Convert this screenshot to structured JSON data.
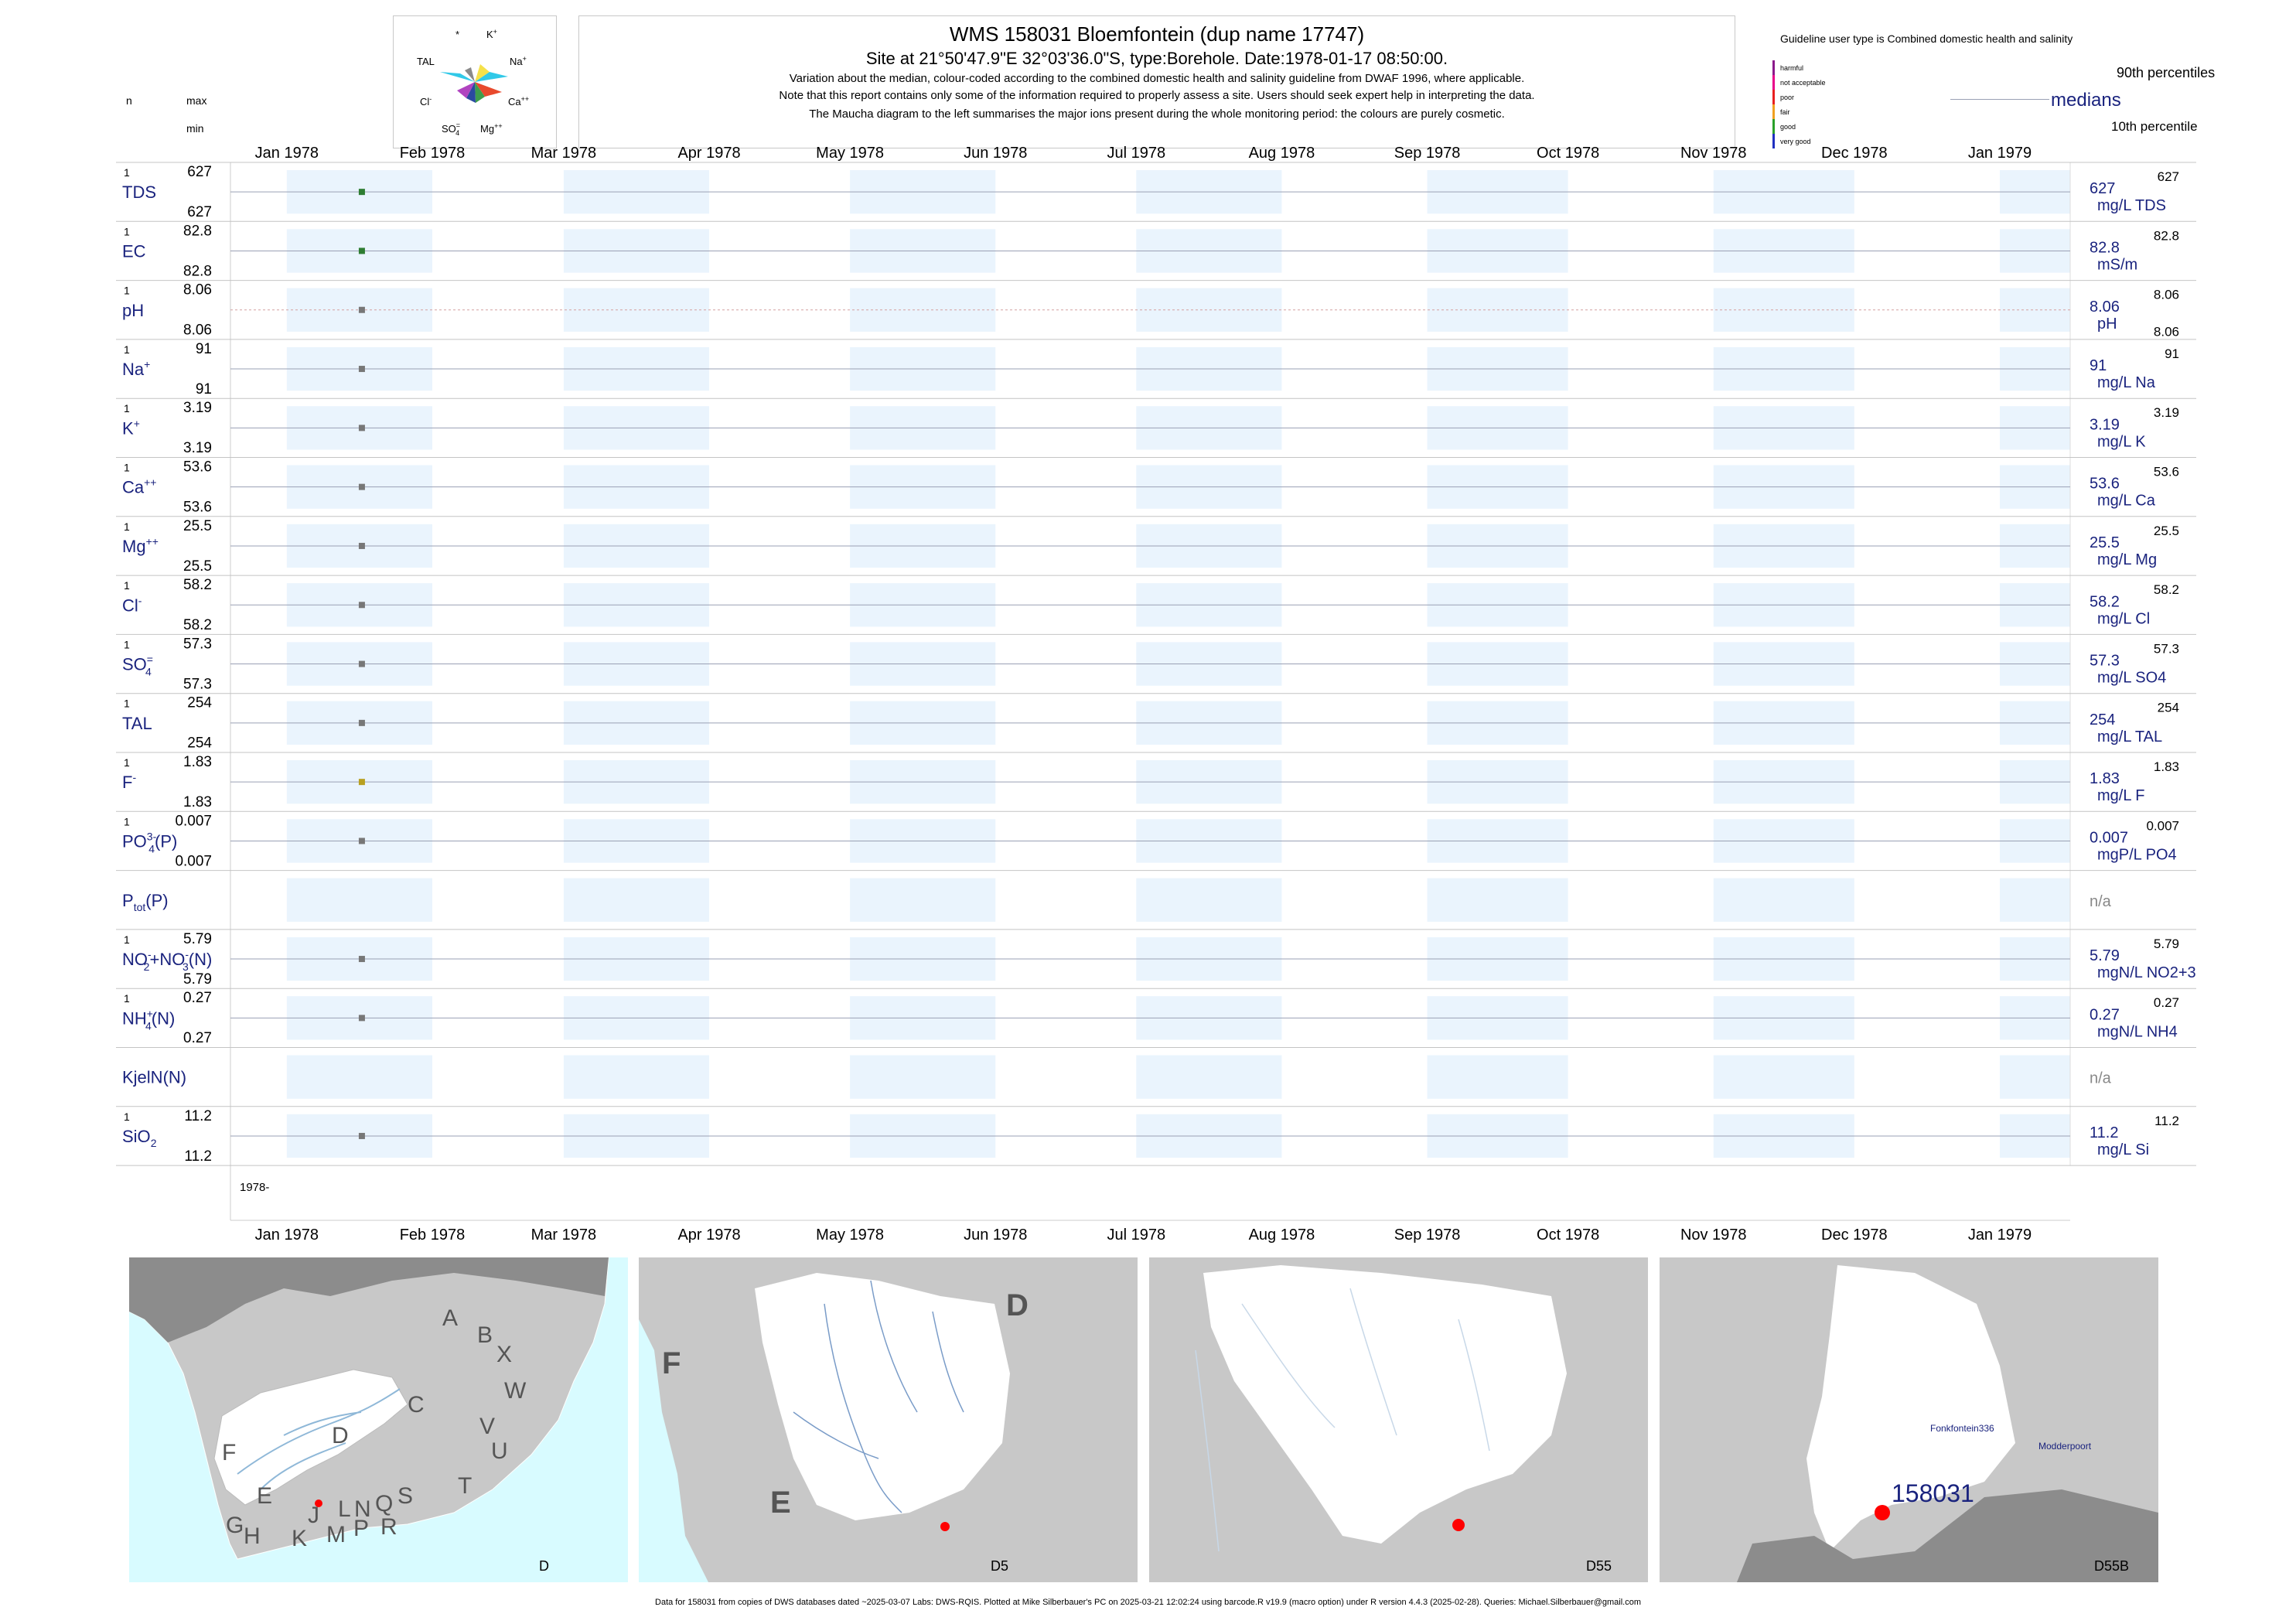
{
  "header": {
    "title": "WMS 158031  Bloemfontein (dup name 17747)",
    "subtitle": "Site at 21°50'47.9\"E 32°03'36.0\"S, type:Borehole. Date:1978-01-17 08:50:00.",
    "note1": "Variation about the median,  colour-coded according to the combined domestic health and salinity guideline from DWAF 1996, where applicable.",
    "note2": "Note that this report contains only some of the information required to properly assess a site. Users should seek expert help in interpreting the data.",
    "note3": "The Maucha diagram to the left summarises the major ions present during the whole monitoring period: the colours are purely cosmetic."
  },
  "col_labels": {
    "n": "n",
    "max": "max",
    "min": "min"
  },
  "maucha": {
    "labels": {
      "star": "*",
      "k": "K",
      "k_sup": "+",
      "na": "Na",
      "na_sup": "+",
      "tal": "TAL",
      "cl": "Cl",
      "cl_sup": "-",
      "ca": "Ca",
      "ca_sup": "++",
      "so4": "SO",
      "so4_sub": "4",
      "so4_sup": "=",
      "mg": "Mg",
      "mg_sup": "++"
    },
    "colors": [
      "#f5e14a",
      "#31c9e8",
      "#e84a2d",
      "#3d9e4c",
      "#8a8a8a",
      "#2a4aa0",
      "#b044c0",
      "#f5a623"
    ]
  },
  "legend": {
    "guideline_text": "Guideline user type is Combined domestic health and salinity",
    "levels": [
      {
        "label": "harmful",
        "color": "#8b1a8b"
      },
      {
        "label": "not acceptable",
        "color": "#e8008a"
      },
      {
        "label": "poor",
        "color": "#e82020"
      },
      {
        "label": "fair",
        "color": "#f0a020"
      },
      {
        "label": "good",
        "color": "#2aa02a"
      },
      {
        "label": "very good",
        "color": "#2030c0"
      }
    ],
    "p90": "90th percentiles",
    "medians": "medians",
    "p10": "10th percentile"
  },
  "chart_data": {
    "type": "scatter",
    "x_axis": {
      "range": [
        "1977-12-20",
        "1979-01-16"
      ],
      "months": [
        "Jan 1978",
        "Feb 1978",
        "Mar 1978",
        "Apr 1978",
        "May 1978",
        "Jun 1978",
        "Jul 1978",
        "Aug 1978",
        "Sep 1978",
        "Oct 1978",
        "Nov 1978",
        "Dec 1978",
        "Jan 1979"
      ],
      "year_label": "1978-"
    },
    "sample_date": "1978-01-17",
    "series": [
      {
        "name": "TDS",
        "n": "1",
        "max": "627",
        "min": "627",
        "median": "627",
        "p90": "627",
        "p10": "",
        "unit": "mg/L TDS",
        "value": 627,
        "color": "#2e7d32"
      },
      {
        "name": "EC",
        "n": "1",
        "max": "82.8",
        "min": "82.8",
        "median": "82.8",
        "p90": "82.8",
        "p10": "",
        "unit": "mS/m",
        "value": 82.8,
        "color": "#2e7d32"
      },
      {
        "name": "pH",
        "n": "1",
        "max": "8.06",
        "min": "8.06",
        "median": "8.06",
        "p90": "8.06",
        "p10": "8.06",
        "unit": "pH",
        "value": 8.06,
        "color": "#777777"
      },
      {
        "name": "Na",
        "sup": "+",
        "n": "1",
        "max": "91",
        "min": "91",
        "median": "91",
        "p90": "91",
        "p10": "",
        "unit": "mg/L Na",
        "value": 91,
        "color": "#777777"
      },
      {
        "name": "K",
        "sup": "+",
        "n": "1",
        "max": "3.19",
        "min": "3.19",
        "median": "3.19",
        "p90": "3.19",
        "p10": "",
        "unit": "mg/L K",
        "value": 3.19,
        "color": "#777777"
      },
      {
        "name": "Ca",
        "sup": "++",
        "n": "1",
        "max": "53.6",
        "min": "53.6",
        "median": "53.6",
        "p90": "53.6",
        "p10": "",
        "unit": "mg/L Ca",
        "value": 53.6,
        "color": "#777777"
      },
      {
        "name": "Mg",
        "sup": "++",
        "n": "1",
        "max": "25.5",
        "min": "25.5",
        "median": "25.5",
        "p90": "25.5",
        "p10": "",
        "unit": "mg/L Mg",
        "value": 25.5,
        "color": "#777777"
      },
      {
        "name": "Cl",
        "sup": "-",
        "n": "1",
        "max": "58.2",
        "min": "58.2",
        "median": "58.2",
        "p90": "58.2",
        "p10": "",
        "unit": "mg/L Cl",
        "value": 58.2,
        "color": "#777777"
      },
      {
        "name": "SO",
        "sub": "4",
        "sup": "=",
        "n": "1",
        "max": "57.3",
        "min": "57.3",
        "median": "57.3",
        "p90": "57.3",
        "p10": "",
        "unit": "mg/L SO4",
        "value": 57.3,
        "color": "#777777"
      },
      {
        "name": "TAL",
        "n": "1",
        "max": "254",
        "min": "254",
        "median": "254",
        "p90": "254",
        "p10": "",
        "unit": "mg/L TAL",
        "value": 254,
        "color": "#777777"
      },
      {
        "name": "F",
        "sup": "-",
        "n": "1",
        "max": "1.83",
        "min": "1.83",
        "median": "1.83",
        "p90": "1.83",
        "p10": "",
        "unit": "mg/L F",
        "value": 1.83,
        "color": "#b8a020"
      },
      {
        "name": "PO",
        "sub": "4",
        "sup": "3-",
        "suffix": "(P)",
        "n": "1",
        "max": "0.007",
        "min": "0.007",
        "median": "0.007",
        "p90": "0.007",
        "p10": "",
        "unit": "mgP/L PO4",
        "value": 0.007,
        "color": "#777777"
      },
      {
        "name": "P",
        "sub": "tot",
        "suffix": "(P)",
        "n": "",
        "max": "",
        "min": "",
        "median": "n/a",
        "p90": "",
        "p10": "",
        "unit": "",
        "value": null,
        "color": "#777777"
      },
      {
        "name": "NO",
        "sub": "2",
        "sup": "-",
        "suffix": "+NO",
        "sub2": "3",
        "sup2": "-",
        "suffix2": "(N)",
        "n": "1",
        "max": "5.79",
        "min": "5.79",
        "median": "5.79",
        "p90": "5.79",
        "p10": "",
        "unit": "mgN/L NO2+3",
        "value": 5.79,
        "color": "#777777"
      },
      {
        "name": "NH",
        "sub": "4",
        "sup": "+",
        "suffix": "(N)",
        "n": "1",
        "max": "0.27",
        "min": "0.27",
        "median": "0.27",
        "p90": "0.27",
        "p10": "",
        "unit": "mgN/L NH4",
        "value": 0.27,
        "color": "#777777"
      },
      {
        "name": "KjelN(N)",
        "n": "",
        "max": "",
        "min": "",
        "median": "n/a",
        "p90": "",
        "p10": "",
        "unit": "",
        "value": null,
        "color": "#777777"
      },
      {
        "name": "SiO",
        "sub": "2",
        "n": "1",
        "max": "11.2",
        "min": "11.2",
        "median": "11.2",
        "p90": "11.2",
        "p10": "",
        "unit": "mg/L Si",
        "value": 11.2,
        "color": "#777777"
      }
    ]
  },
  "maps": {
    "panel_colors": {
      "sea": "#d8fbff",
      "land": "#c8c8c8",
      "dark": "#8c8c8c",
      "catchment": "#ffffff",
      "river": "#8fb8d8",
      "site": "#ff0000"
    },
    "map1": {
      "caption": "D",
      "letters": [
        "A",
        "B",
        "X",
        "C",
        "W",
        "D",
        "V",
        "U",
        "T",
        "F",
        "E",
        "J",
        "L",
        "N",
        "Q",
        "S",
        "R",
        "G",
        "H",
        "K",
        "M",
        "P"
      ]
    },
    "map2": {
      "caption": "D5",
      "big_letters": [
        "D",
        "F",
        "E"
      ]
    },
    "map3": {
      "caption": "D55"
    },
    "map4": {
      "caption": "D55B",
      "site_label": "158031",
      "place1": "Fonkfontein336",
      "place2": "Modderpoort"
    }
  },
  "footer": "Data for 158031 from copies of DWS databases dated ~2025-03-07 Labs: DWS-RQIS. Plotted at Mike Silberbauer's PC on 2025-03-21 12:02:24 using barcode.R v19.9 (macro option) under R version 4.4.3 (2025-02-28). Queries: Michael.Silberbauer@gmail.com"
}
